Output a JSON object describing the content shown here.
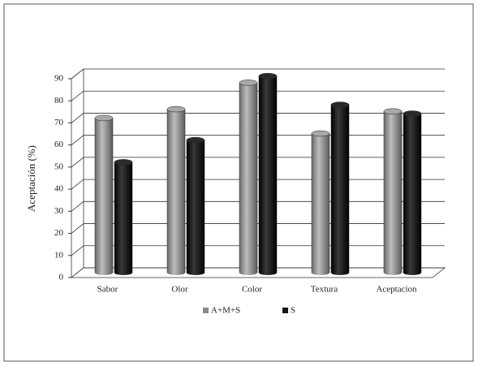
{
  "chart_data": {
    "type": "bar3d",
    "y_label": "Aceptación (%)",
    "categories": [
      "Sabor",
      "Olor",
      "Color",
      "Textura",
      "Aceptacion"
    ],
    "series": [
      {
        "name": "A+M+S",
        "color": "#8a8a8a",
        "values": [
          70,
          74,
          86,
          63,
          73
        ]
      },
      {
        "name": "S",
        "color": "#141414",
        "values": [
          50,
          60,
          89,
          76,
          72
        ]
      }
    ],
    "ylim": [
      0,
      90
    ],
    "yticks": [
      0,
      10,
      20,
      30,
      40,
      50,
      60,
      70,
      80,
      90
    ],
    "grid": true,
    "legend": "bottom"
  }
}
